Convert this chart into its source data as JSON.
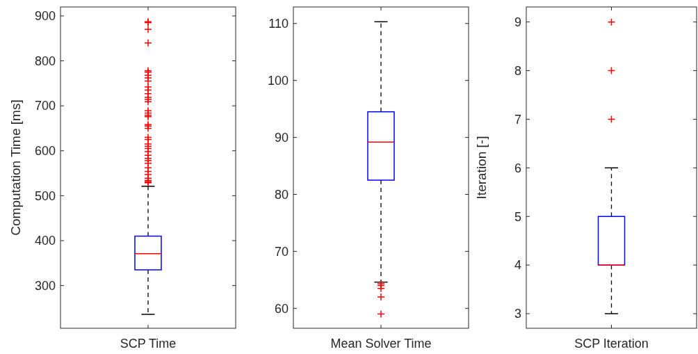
{
  "chart_data": [
    {
      "type": "box",
      "categories": [
        "SCP Time"
      ],
      "ylabel": "Computation Time [ms]",
      "color": "#0000ff",
      "ylim": [
        205,
        920
      ],
      "yticks": [
        300,
        400,
        500,
        600,
        700,
        800,
        900
      ],
      "boxes": [
        {
          "low": 236,
          "q1": 335,
          "median": 371,
          "q3": 410,
          "high": 521,
          "outliers": [
            887,
            885,
            870,
            840,
            778,
            775,
            768,
            762,
            755,
            742,
            735,
            727,
            719,
            714,
            709,
            689,
            684,
            679,
            676,
            658,
            655,
            650,
            630,
            625,
            615,
            610,
            605,
            598,
            590,
            583,
            578,
            572,
            562,
            554,
            547,
            539,
            534,
            531,
            529
          ]
        }
      ]
    },
    {
      "type": "box",
      "categories": [
        "Mean Solver Time"
      ],
      "color": "#0000ff",
      "ylim": [
        56.5,
        112.9
      ],
      "yticks": [
        60,
        70,
        80,
        90,
        100,
        110
      ],
      "boxes": [
        {
          "low": 64.6,
          "q1": 82.5,
          "median": 89.2,
          "q3": 94.5,
          "high": 110.3,
          "outliers": [
            64.3,
            64.0,
            63.5,
            62.0,
            59.0
          ]
        }
      ]
    },
    {
      "type": "box",
      "categories": [
        "SCP Iteration"
      ],
      "ylabel": "Iteration [-]",
      "color": "#0000ff",
      "ylim": [
        2.7,
        9.31
      ],
      "yticks": [
        3,
        4,
        5,
        6,
        7,
        8,
        9
      ],
      "boxes": [
        {
          "low": 3,
          "q1": 4,
          "median": 4,
          "q3": 5,
          "high": 6,
          "outliers": [
            7,
            8,
            9
          ]
        }
      ]
    }
  ]
}
